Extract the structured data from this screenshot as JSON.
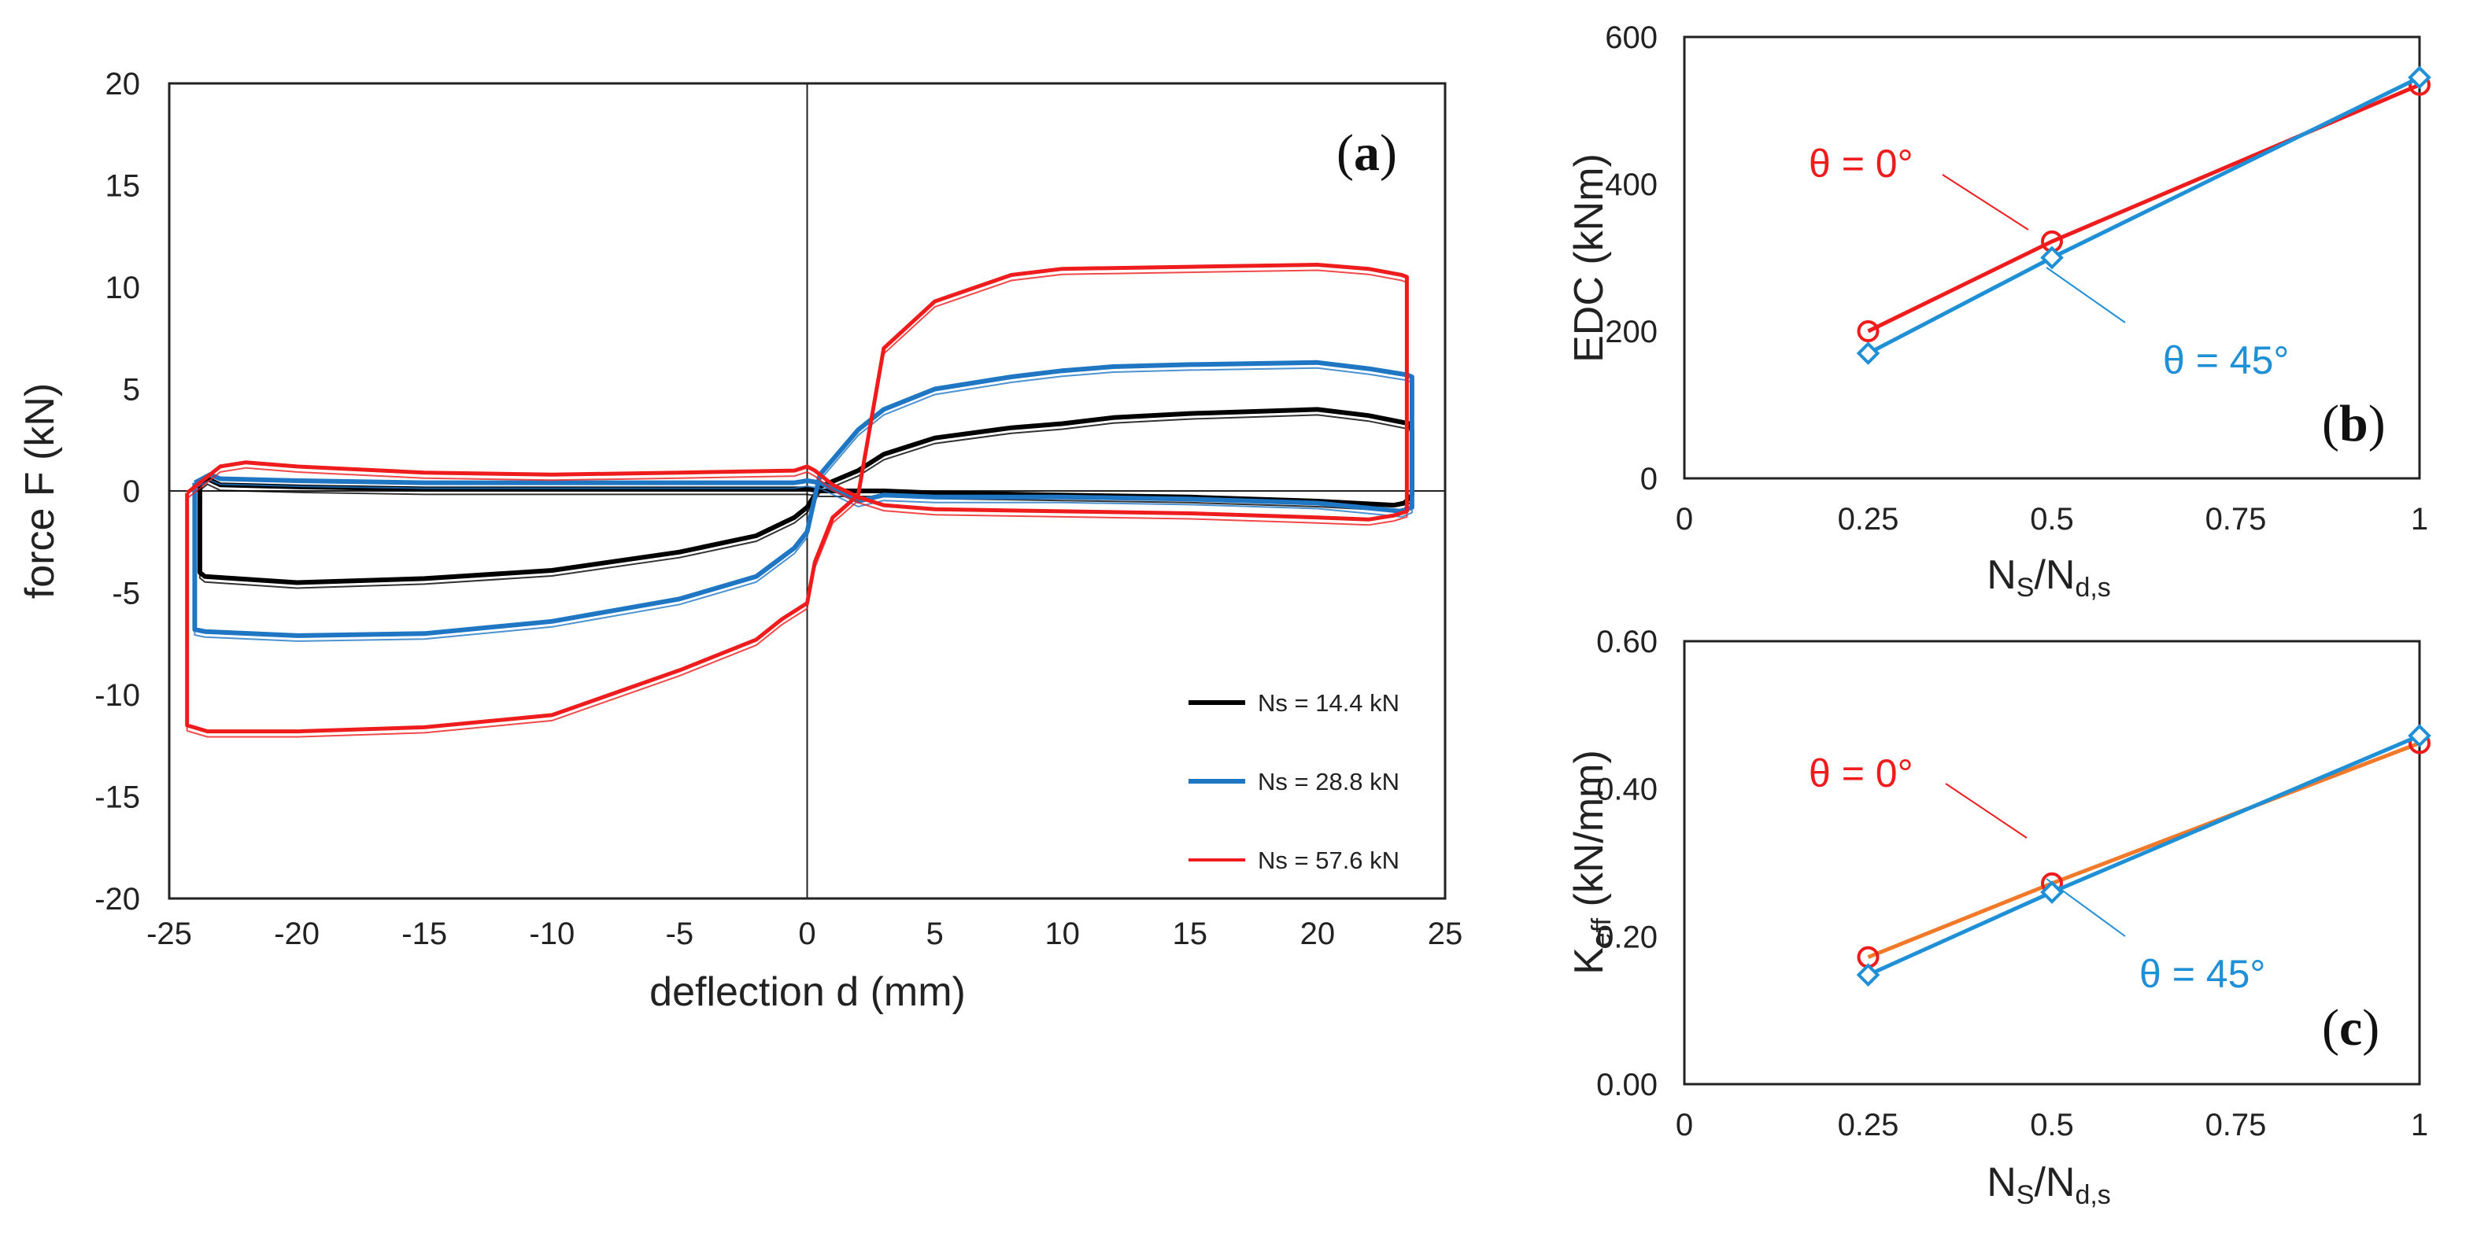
{
  "chart_data": [
    {
      "id": "a",
      "type": "line",
      "panel_label_open": "(",
      "panel_label": "a",
      "panel_label_close": ")",
      "xlabel": "deflection d (mm)",
      "ylabel": "force F (kN)",
      "xlim": [
        -25,
        25
      ],
      "ylim": [
        -20,
        20
      ],
      "xticks": [
        "-25",
        "-20",
        "-15",
        "-10",
        "-5",
        "0",
        "5",
        "10",
        "15",
        "20",
        "25"
      ],
      "yticks": [
        "20",
        "15",
        "10",
        "5",
        "0",
        "-5",
        "-10",
        "-15",
        "-20"
      ],
      "legend_position": "bottom-right",
      "series": [
        {
          "name": "Ns = 14.4 kN",
          "color": "#000000",
          "x": [
            -23.8,
            -23.8,
            -23.6,
            -20,
            -15,
            -10,
            -5,
            -2,
            -0.5,
            0,
            0.5,
            2,
            3,
            5,
            8,
            10,
            12,
            15,
            20,
            22,
            23.6,
            23.7,
            23.7,
            23.4,
            23,
            20,
            15,
            10,
            5,
            3,
            2,
            0.5,
            0,
            -0.5,
            -5,
            -10,
            -15,
            -20,
            -23,
            -23.5,
            -23.8
          ],
          "y": [
            0.3,
            -4.0,
            -4.2,
            -4.5,
            -4.3,
            -3.9,
            -3.0,
            -2.2,
            -1.3,
            -0.8,
            0.2,
            1.0,
            1.8,
            2.6,
            3.1,
            3.3,
            3.6,
            3.8,
            4.0,
            3.7,
            3.3,
            3.0,
            -0.2,
            -0.6,
            -0.7,
            -0.5,
            -0.3,
            -0.2,
            -0.1,
            0.0,
            0.0,
            0.0,
            0.1,
            0.1,
            0.1,
            0.1,
            0.1,
            0.2,
            0.3,
            0.6,
            0.3
          ]
        },
        {
          "name": "Ns = 28.8 kN",
          "color": "#1f77c4",
          "x": [
            -24.0,
            -24.0,
            -23.6,
            -20,
            -15,
            -10,
            -5,
            -2,
            -0.5,
            0,
            0.5,
            2,
            3,
            5,
            8,
            10,
            12,
            15,
            20,
            22,
            23.5,
            23.7,
            23.7,
            23.3,
            22.5,
            20,
            15,
            10,
            5,
            3,
            2,
            0.5,
            0,
            -0.5,
            -5,
            -10,
            -15,
            -20,
            -23,
            -23.4,
            -24.0
          ],
          "y": [
            0.4,
            -6.8,
            -6.9,
            -7.1,
            -7.0,
            -6.4,
            -5.3,
            -4.2,
            -2.8,
            -2.0,
            0.8,
            3.0,
            4.0,
            5.0,
            5.6,
            5.9,
            6.1,
            6.2,
            6.3,
            6.0,
            5.7,
            5.6,
            -0.8,
            -1.0,
            -0.9,
            -0.6,
            -0.4,
            -0.3,
            -0.3,
            -0.2,
            -0.5,
            0.4,
            0.5,
            0.4,
            0.4,
            0.4,
            0.4,
            0.5,
            0.6,
            0.8,
            0.4
          ]
        },
        {
          "name": "Ns = 57.6 kN",
          "color": "#ee1c1c",
          "x": [
            -24.3,
            -24.3,
            -23.5,
            -20,
            -15,
            -10,
            -5,
            -2,
            -1,
            0,
            0.3,
            1,
            2,
            3,
            5,
            8,
            10,
            15,
            20,
            22,
            23.3,
            23.5,
            23.5,
            23.0,
            22,
            20,
            15,
            10,
            5,
            3,
            2,
            1,
            0.3,
            0,
            -0.5,
            -5,
            -10,
            -15,
            -20,
            -22,
            -23,
            -24.3
          ],
          "y": [
            -0.1,
            -11.5,
            -11.8,
            -11.8,
            -11.6,
            -11.0,
            -8.8,
            -7.3,
            -6.3,
            -5.5,
            -3.5,
            -1.3,
            -0.2,
            7.0,
            9.3,
            10.6,
            10.9,
            11.0,
            11.1,
            10.9,
            10.6,
            10.5,
            -1.0,
            -1.2,
            -1.4,
            -1.3,
            -1.1,
            -1.0,
            -0.9,
            -0.7,
            -0.3,
            0.3,
            1.0,
            1.2,
            1.0,
            0.9,
            0.8,
            0.9,
            1.2,
            1.4,
            1.2,
            -0.1
          ]
        }
      ]
    },
    {
      "id": "b",
      "type": "line",
      "panel_label_open": "(",
      "panel_label": "b",
      "panel_label_close": ")",
      "xlabel_main": "N",
      "xlabel_sub1": "S",
      "xlabel_mid": "/N",
      "xlabel_sub2": "d,s",
      "ylabel": "EDC (kNm)",
      "xlim": [
        0,
        1
      ],
      "ylim": [
        0,
        600
      ],
      "xticks": [
        "0",
        "0.25",
        "0.5",
        "0.75",
        "1"
      ],
      "yticks": [
        "600",
        "400",
        "200",
        "0"
      ],
      "categories": [
        0.25,
        0.5,
        1
      ],
      "series": [
        {
          "name": "θ = 0°",
          "color": "#ee1c1c",
          "marker": "circle",
          "values": [
            200,
            322,
            535
          ]
        },
        {
          "name": "θ = 45°",
          "color": "#1f8fd6",
          "marker": "diamond",
          "values": [
            170,
            300,
            545
          ]
        }
      ]
    },
    {
      "id": "c",
      "type": "line",
      "panel_label_open": "(",
      "panel_label": "c",
      "panel_label_close": ")",
      "xlabel_main": "N",
      "xlabel_sub1": "S",
      "xlabel_mid": "/N",
      "xlabel_sub2": "d,s",
      "ylabel_main": "K",
      "ylabel_sub": "eff",
      "ylabel_rest": " (kN/mm)",
      "xlim": [
        0,
        1
      ],
      "ylim": [
        0,
        0.6
      ],
      "xticks": [
        "0",
        "0.25",
        "0.5",
        "0.75",
        "1"
      ],
      "yticks": [
        "0.60",
        "0.40",
        "0.20",
        "0.00"
      ],
      "categories": [
        0.25,
        0.5,
        1
      ],
      "series": [
        {
          "name": "θ = 0°",
          "color": "#ee1c1c",
          "line_color": "#f07a2a",
          "marker": "circle",
          "values": [
            0.172,
            0.272,
            0.462
          ]
        },
        {
          "name": "θ = 45°",
          "color": "#1f8fd6",
          "marker": "diamond",
          "values": [
            0.148,
            0.26,
            0.472
          ]
        }
      ]
    }
  ]
}
